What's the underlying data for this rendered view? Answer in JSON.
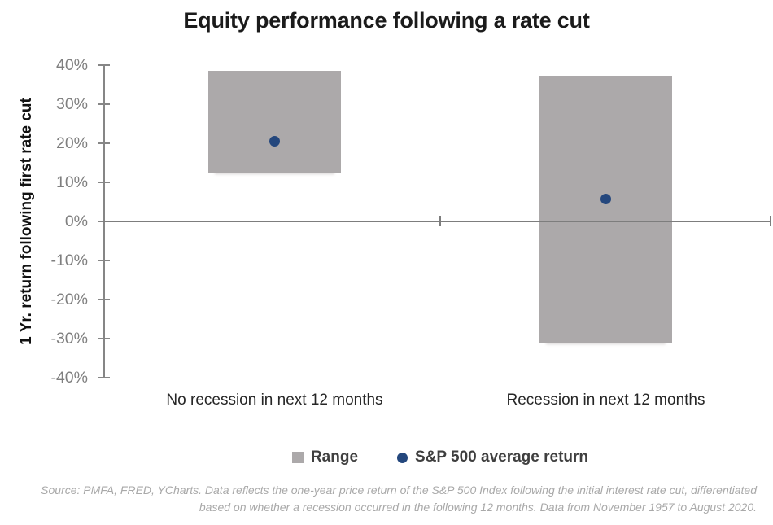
{
  "title": "Equity performance following a rate cut",
  "chart_data": {
    "type": "bar",
    "subtype": "floating-range-bars-with-average-points",
    "title": "Equity performance following a rate cut",
    "categories": [
      "No recession in next 12 months",
      "Recession in next 12 months"
    ],
    "series": [
      {
        "name": "Range",
        "type": "range",
        "marker": "square",
        "color": "#aca9aa",
        "values": [
          {
            "min": 12.5,
            "max": 38.5
          },
          {
            "min": -31.0,
            "max": 37.3
          }
        ]
      },
      {
        "name": "S&P 500 average return",
        "type": "point",
        "marker": "circle",
        "color": "#24477d",
        "values": [
          20.5,
          5.7
        ]
      }
    ],
    "xlabel": "",
    "ylabel": "1 Yr. return following first rate cut",
    "ylim": [
      -40,
      40
    ],
    "ytick_step": 10,
    "ytick_values": [
      40,
      30,
      20,
      10,
      0,
      -10,
      -20,
      -30,
      -40
    ],
    "ytick_labels": [
      "40%",
      "30%",
      "20%",
      "10%",
      "0%",
      "-10%",
      "-20%",
      "-30%",
      "-40%"
    ],
    "grid": false,
    "legend_position": "bottom-center"
  },
  "legend": {
    "items": [
      {
        "label": "Range",
        "marker": "square",
        "color": "#aca9aa"
      },
      {
        "label": "S&P 500 average return",
        "marker": "circle",
        "color": "#24477d"
      }
    ]
  },
  "source": {
    "line1": "Source: PMFA, FRED, YCharts. Data reflects the one-year price return of the S&P 500 Index following the initial interest rate cut, differentiated",
    "line2": "based on whether a recession occurred in the following 12 months. Data from November 1957 to August 2020."
  },
  "colors": {
    "range_bar": "#aca9aa",
    "average_dot": "#24477d",
    "axis": "#7d7d7d",
    "tick_label": "#7f7f7f",
    "title_text": "#1b1b1b",
    "category_label": "#262626",
    "legend_text": "#3f3f3f",
    "source_text": "#a9a9a9"
  }
}
